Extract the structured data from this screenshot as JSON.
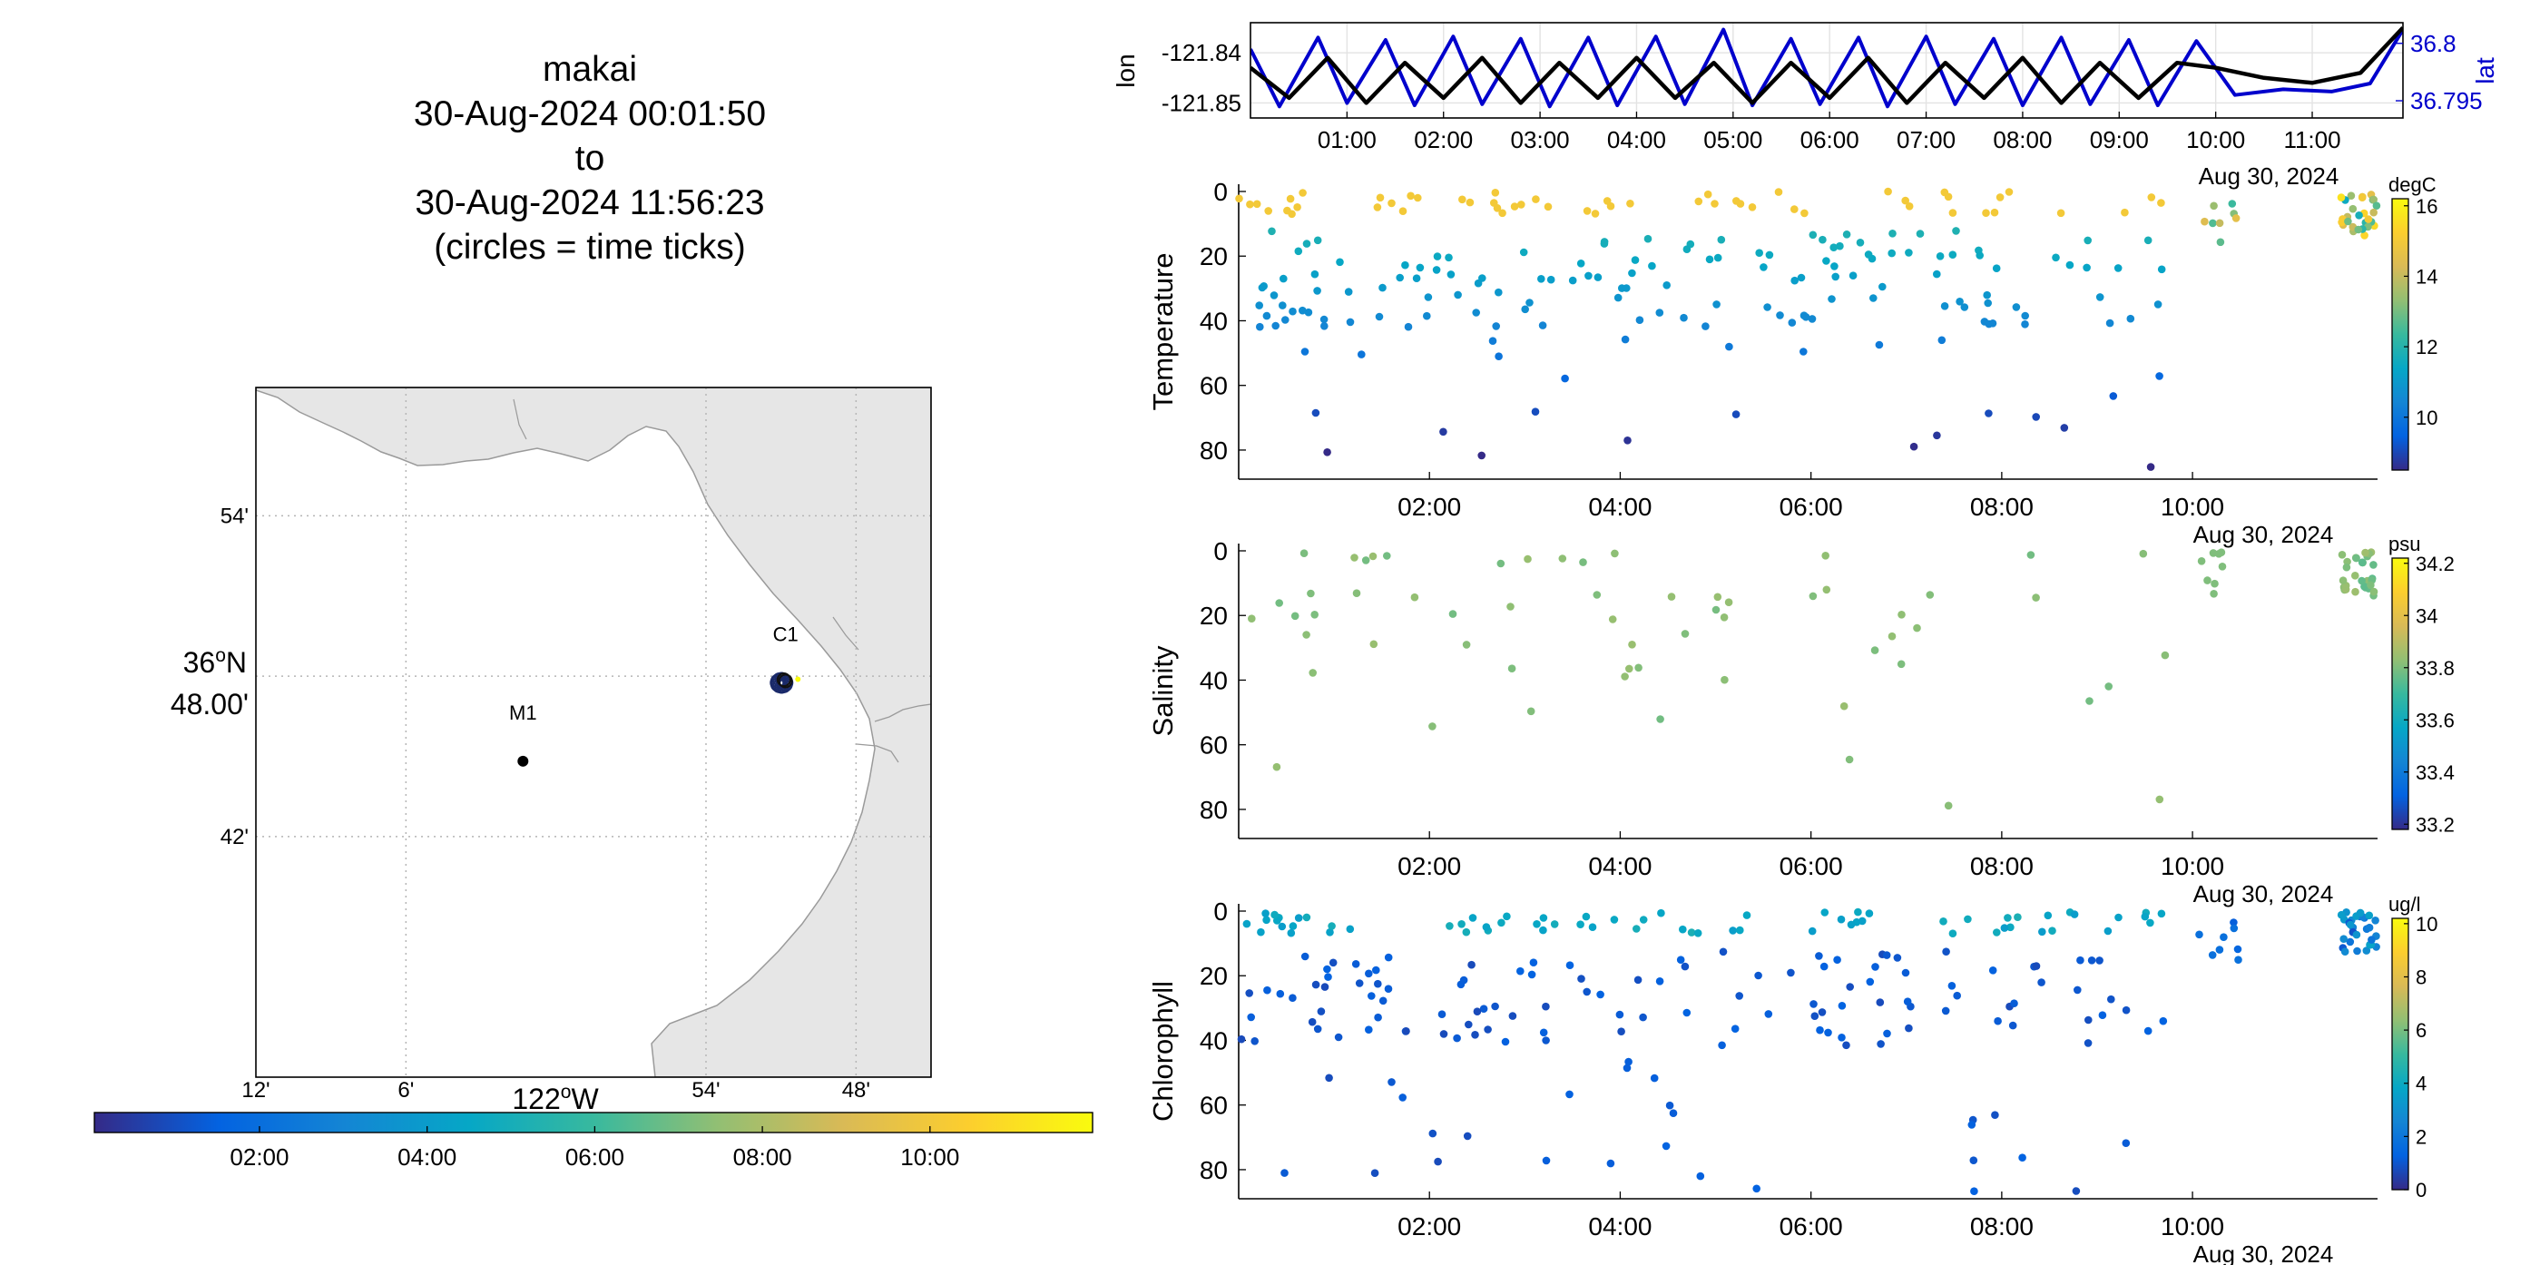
{
  "title": {
    "name": "makai",
    "start": "30-Aug-2024 00:01:50",
    "to": "to",
    "end": "30-Aug-2024 11:56:23",
    "note": "(circles = time ticks)"
  },
  "colors": {
    "lon_line": "#000000",
    "lat_line": "#0000cc",
    "land": "#e6e6e6",
    "coast": "#9a9a9a",
    "parula": [
      "#352a87",
      "#0363e1",
      "#1485d4",
      "#06a7c6",
      "#38b99e",
      "#92bf73",
      "#d9ba56",
      "#fcce2e",
      "#f9fb0e"
    ]
  },
  "chart_data": [
    {
      "type": "map",
      "name": "track-map",
      "lon_range": [
        -122.2,
        -121.75
      ],
      "lat_range": [
        36.55,
        36.98
      ],
      "lon_ticks": [
        {
          "v": -122.2,
          "label": "12'"
        },
        {
          "v": -122.1,
          "label": "6'"
        },
        {
          "v": -121.9,
          "label": "54'"
        },
        {
          "v": -121.8,
          "label": "48'"
        }
      ],
      "lon_axis_label": {
        "deg": "122",
        "dir": "W"
      },
      "lat_ticks": [
        {
          "v": 36.9,
          "label": "54'"
        },
        {
          "v": 36.8,
          "label": "48.00'",
          "deg": "36",
          "dir": "N"
        },
        {
          "v": 36.7,
          "label": "42'"
        }
      ],
      "stations": [
        {
          "name": "M1",
          "lon": -122.022,
          "lat": 36.747
        },
        {
          "name": "C1",
          "lon": -121.847,
          "lat": 36.797
        }
      ],
      "track_center": {
        "lon": -121.846,
        "lat": 36.797
      }
    },
    {
      "type": "colorbar",
      "name": "time-colorbar",
      "range_hours": [
        0.03,
        11.94
      ],
      "ticks": [
        "02:00",
        "04:00",
        "06:00",
        "08:00",
        "10:00"
      ]
    },
    {
      "type": "line",
      "name": "lon-lat-timeseries",
      "ylabel": "lon",
      "ylabel_right": "lat",
      "ylim_lon": [
        -121.853,
        -121.834
      ],
      "ylim_lat": [
        36.7935,
        36.8018
      ],
      "yticks_lon": [
        "-121.84",
        "-121.85"
      ],
      "yticks_lat": [
        "36.8",
        "36.795"
      ],
      "xticks": [
        "01:00",
        "02:00",
        "03:00",
        "04:00",
        "05:00",
        "06:00",
        "07:00",
        "08:00",
        "09:00",
        "10:00",
        "11:00"
      ],
      "date_label": "Aug 30, 2024",
      "series": [
        {
          "name": "lon",
          "x": [
            0.0,
            0.4,
            0.8,
            1.2,
            1.6,
            2.0,
            2.4,
            2.8,
            3.2,
            3.6,
            4.0,
            4.4,
            4.8,
            5.2,
            5.6,
            6.0,
            6.4,
            6.8,
            7.2,
            7.6,
            8.0,
            8.4,
            8.8,
            9.2,
            9.6,
            10.0,
            10.5,
            11.0,
            11.5,
            11.94
          ],
          "y": [
            -121.843,
            -121.849,
            -121.841,
            -121.85,
            -121.842,
            -121.849,
            -121.841,
            -121.85,
            -121.842,
            -121.849,
            -121.841,
            -121.849,
            -121.842,
            -121.85,
            -121.842,
            -121.849,
            -121.841,
            -121.85,
            -121.842,
            -121.849,
            -121.841,
            -121.85,
            -121.842,
            -121.849,
            -121.842,
            -121.843,
            -121.845,
            -121.846,
            -121.844,
            -121.835
          ]
        },
        {
          "name": "lat",
          "x": [
            0.0,
            0.3,
            0.7,
            1.0,
            1.4,
            1.7,
            2.1,
            2.4,
            2.8,
            3.1,
            3.5,
            3.8,
            4.2,
            4.5,
            4.9,
            5.2,
            5.6,
            5.9,
            6.3,
            6.6,
            7.0,
            7.3,
            7.7,
            8.0,
            8.4,
            8.7,
            9.1,
            9.4,
            9.8,
            10.2,
            10.7,
            11.2,
            11.6,
            11.94
          ],
          "y": [
            36.7995,
            36.7945,
            36.8005,
            36.7948,
            36.8003,
            36.7946,
            36.8006,
            36.7947,
            36.8004,
            36.7945,
            36.8005,
            36.7946,
            36.8006,
            36.7947,
            36.8012,
            36.7946,
            36.8004,
            36.7947,
            36.8005,
            36.7945,
            36.8006,
            36.7947,
            36.8004,
            36.7946,
            36.8005,
            36.7947,
            36.8003,
            36.7946,
            36.8002,
            36.7955,
            36.796,
            36.7958,
            36.7965,
            36.8012
          ]
        }
      ]
    },
    {
      "type": "scatter",
      "name": "temperature",
      "ylabel": "Temperature",
      "ylim": [
        0,
        89
      ],
      "yticks": [
        0,
        20,
        40,
        60,
        80
      ],
      "xticks": [
        "02:00",
        "04:00",
        "06:00",
        "08:00",
        "10:00"
      ],
      "date_label": "Aug 30, 2024",
      "cbar_unit": "degC",
      "cbar_range": [
        8.5,
        16.2
      ],
      "cbar_ticks": [
        10,
        12,
        14,
        16
      ]
    },
    {
      "type": "scatter",
      "name": "salinity",
      "ylabel": "Salinity",
      "ylim": [
        0,
        89
      ],
      "yticks": [
        0,
        20,
        40,
        60,
        80
      ],
      "xticks": [
        "02:00",
        "04:00",
        "06:00",
        "08:00",
        "10:00"
      ],
      "date_label": "Aug 30, 2024",
      "cbar_unit": "psu",
      "cbar_range": [
        33.18,
        34.22
      ],
      "cbar_ticks": [
        33.2,
        33.4,
        33.6,
        33.8,
        34,
        34.2
      ]
    },
    {
      "type": "scatter",
      "name": "chlorophyll",
      "ylabel": "Chlorophyll",
      "ylim": [
        0,
        89
      ],
      "yticks": [
        0,
        20,
        40,
        60,
        80
      ],
      "xticks": [
        "02:00",
        "04:00",
        "06:00",
        "08:00",
        "10:00"
      ],
      "date_label": "Aug 30, 2024",
      "cbar_unit": "ug/l",
      "cbar_range": [
        0,
        10.2
      ],
      "cbar_ticks": [
        0,
        2,
        4,
        6,
        8,
        10
      ]
    }
  ]
}
